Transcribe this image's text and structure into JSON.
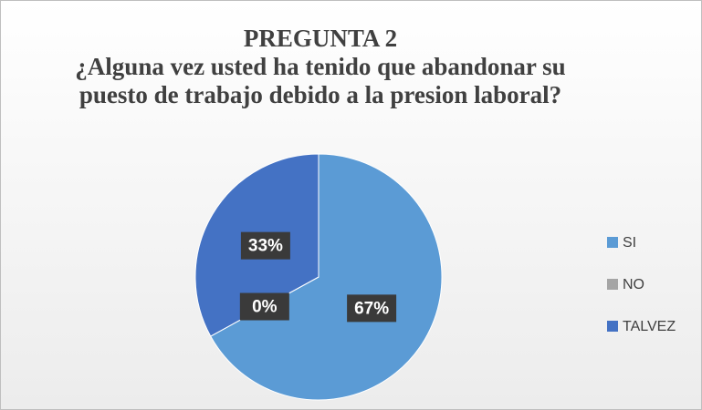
{
  "chart_data": {
    "type": "pie",
    "title": "PREGUNTA 2",
    "subtitle": "¿Alguna vez usted ha tenido que abandonar su puesto de trabajo debido a la presion laboral?",
    "categories": [
      "SI",
      "NO",
      "TALVEZ"
    ],
    "values": [
      67,
      0,
      33
    ],
    "value_labels": [
      "67%",
      "0%",
      "33%"
    ],
    "colors": [
      "#5b9bd5",
      "#a5a5a5",
      "#4472c4"
    ],
    "legend": "right"
  }
}
